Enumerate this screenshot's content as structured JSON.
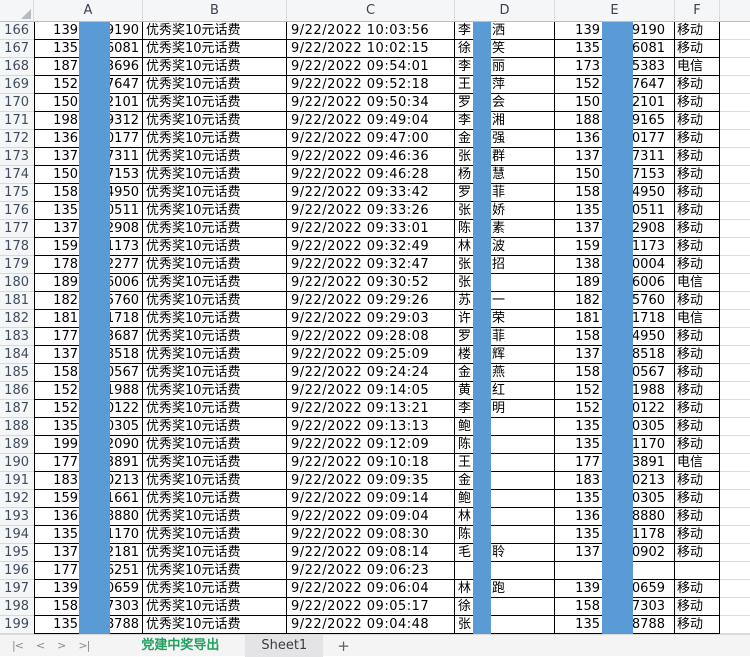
{
  "sheet": {
    "column_headers": [
      "A",
      "B",
      "C",
      "D",
      "E",
      "F"
    ],
    "prize_label": "优秀奖10元话费",
    "rows": [
      {
        "n": "166",
        "a1": "139",
        "a2": "9190",
        "time": "9/22/2022 10:03:56",
        "d1": "李",
        "d2": "洒",
        "e1": "139",
        "e2": "9190",
        "f": "移动"
      },
      {
        "n": "167",
        "a1": "135",
        "a2": "6081",
        "time": "9/22/2022 10:02:15",
        "d1": "徐",
        "d2": "笑",
        "e1": "135",
        "e2": "6081",
        "f": "移动"
      },
      {
        "n": "168",
        "a1": "187",
        "a2": "3696",
        "time": "9/22/2022 09:54:01",
        "d1": "李",
        "d2": "丽",
        "e1": "173",
        "e2": "5383",
        "f": "电信"
      },
      {
        "n": "169",
        "a1": "152",
        "a2": "7647",
        "time": "9/22/2022 09:52:18",
        "d1": "王",
        "d2": "萍",
        "e1": "152",
        "e2": "7647",
        "f": "移动"
      },
      {
        "n": "170",
        "a1": "150",
        "a2": "2101",
        "time": "9/22/2022 09:50:34",
        "d1": "罗",
        "d2": "会",
        "e1": "150",
        "e2": "2101",
        "f": "移动"
      },
      {
        "n": "171",
        "a1": "198",
        "a2": "9312",
        "time": "9/22/2022 09:49:04",
        "d1": "李",
        "d2": "湘",
        "e1": "188",
        "e2": "9165",
        "f": "移动"
      },
      {
        "n": "172",
        "a1": "136",
        "a2": "0177",
        "time": "9/22/2022 09:47:00",
        "d1": "金",
        "d2": "强",
        "e1": "136",
        "e2": "0177",
        "f": "移动"
      },
      {
        "n": "173",
        "a1": "137",
        "a2": "7311",
        "time": "9/22/2022 09:46:36",
        "d1": "张",
        "d2": "群",
        "e1": "137",
        "e2": "7311",
        "f": "移动"
      },
      {
        "n": "174",
        "a1": "150",
        "a2": "7153",
        "time": "9/22/2022 09:46:28",
        "d1": "杨",
        "d2": "慧",
        "e1": "150",
        "e2": "7153",
        "f": "移动"
      },
      {
        "n": "175",
        "a1": "158",
        "a2": "4950",
        "time": "9/22/2022 09:33:42",
        "d1": "罗",
        "d2": "菲",
        "e1": "158",
        "e2": "4950",
        "f": "移动"
      },
      {
        "n": "176",
        "a1": "135",
        "a2": "0511",
        "time": "9/22/2022 09:33:26",
        "d1": "张",
        "d2": "娇",
        "e1": "135",
        "e2": "0511",
        "f": "移动"
      },
      {
        "n": "177",
        "a1": "137",
        "a2": "2908",
        "time": "9/22/2022 09:33:01",
        "d1": "陈",
        "d2": "素",
        "e1": "137",
        "e2": "2908",
        "f": "移动"
      },
      {
        "n": "178",
        "a1": "159",
        "a2": "1173",
        "time": "9/22/2022 09:32:49",
        "d1": "林",
        "d2": "波",
        "e1": "159",
        "e2": "1173",
        "f": "移动"
      },
      {
        "n": "179",
        "a1": "178",
        "a2": "2277",
        "time": "9/22/2022 09:32:47",
        "d1": "张",
        "d2": "招",
        "e1": "138",
        "e2": "0004",
        "f": "移动"
      },
      {
        "n": "180",
        "a1": "189",
        "a2": "6006",
        "time": "9/22/2022 09:30:52",
        "d1": "张",
        "d2": "",
        "e1": "189",
        "e2": "6006",
        "f": "电信"
      },
      {
        "n": "181",
        "a1": "182",
        "a2": "5760",
        "time": "9/22/2022 09:29:26",
        "d1": "苏",
        "d2": "一",
        "e1": "182",
        "e2": "5760",
        "f": "移动"
      },
      {
        "n": "182",
        "a1": "181",
        "a2": "1718",
        "time": "9/22/2022 09:29:03",
        "d1": "许",
        "d2": "荣",
        "e1": "181",
        "e2": "1718",
        "f": "电信"
      },
      {
        "n": "183",
        "a1": "177",
        "a2": "3687",
        "time": "9/22/2022 09:28:08",
        "d1": "罗",
        "d2": "菲",
        "e1": "158",
        "e2": "4950",
        "f": "移动"
      },
      {
        "n": "184",
        "a1": "137",
        "a2": "8518",
        "time": "9/22/2022 09:25:09",
        "d1": "楼",
        "d2": "辉",
        "e1": "137",
        "e2": "8518",
        "f": "移动"
      },
      {
        "n": "185",
        "a1": "158",
        "a2": "0567",
        "time": "9/22/2022 09:24:24",
        "d1": "金",
        "d2": "燕",
        "e1": "158",
        "e2": "0567",
        "f": "移动"
      },
      {
        "n": "186",
        "a1": "152",
        "a2": "1988",
        "time": "9/22/2022 09:14:05",
        "d1": "黄",
        "d2": "红",
        "e1": "152",
        "e2": "1988",
        "f": "移动"
      },
      {
        "n": "187",
        "a1": "152",
        "a2": "0122",
        "time": "9/22/2022 09:13:21",
        "d1": "李",
        "d2": "明",
        "e1": "152",
        "e2": "0122",
        "f": "移动"
      },
      {
        "n": "188",
        "a1": "135",
        "a2": "0305",
        "time": "9/22/2022 09:13:13",
        "d1": "鲍",
        "d2": "",
        "e1": "135",
        "e2": "0305",
        "f": "移动"
      },
      {
        "n": "189",
        "a1": "199",
        "a2": "2090",
        "time": "9/22/2022 09:12:09",
        "d1": "陈",
        "d2": "",
        "e1": "135",
        "e2": "1170",
        "f": "移动"
      },
      {
        "n": "190",
        "a1": "177",
        "a2": "3891",
        "time": "9/22/2022 09:10:18",
        "d1": "王",
        "d2": "",
        "e1": "177",
        "e2": "3891",
        "f": "电信"
      },
      {
        "n": "191",
        "a1": "183",
        "a2": "0213",
        "time": "9/22/2022 09:09:35",
        "d1": "金",
        "d2": "",
        "e1": "183",
        "e2": "0213",
        "f": "移动"
      },
      {
        "n": "192",
        "a1": "159",
        "a2": "1661",
        "time": "9/22/2022 09:09:14",
        "d1": "鲍",
        "d2": "",
        "e1": "135",
        "e2": "0305",
        "f": "移动"
      },
      {
        "n": "193",
        "a1": "136",
        "a2": "8880",
        "time": "9/22/2022 09:09:04",
        "d1": "林",
        "d2": "",
        "e1": "136",
        "e2": "8880",
        "f": "移动"
      },
      {
        "n": "194",
        "a1": "135",
        "a2": "1170",
        "time": "9/22/2022 09:08:30",
        "d1": "陈",
        "d2": "",
        "e1": "135",
        "e2": "1178",
        "f": "移动"
      },
      {
        "n": "195",
        "a1": "137",
        "a2": "2181",
        "time": "9/22/2022 09:08:14",
        "d1": "毛",
        "d2": "聆",
        "e1": "137",
        "e2": "0902",
        "f": "移动"
      },
      {
        "n": "196",
        "a1": "177",
        "a2": "6251",
        "time": "9/22/2022 09:06:23",
        "d1": "",
        "d2": "",
        "e1": "",
        "e2": "",
        "f": ""
      },
      {
        "n": "197",
        "a1": "139",
        "a2": "0659",
        "time": "9/22/2022 09:06:04",
        "d1": "林",
        "d2": "跑",
        "e1": "139",
        "e2": "0659",
        "f": "移动"
      },
      {
        "n": "198",
        "a1": "158",
        "a2": "7303",
        "time": "9/22/2022 09:05:17",
        "d1": "徐",
        "d2": "",
        "e1": "158",
        "e2": "7303",
        "f": "移动"
      },
      {
        "n": "199",
        "a1": "135",
        "a2": "8788",
        "time": "9/22/2022 09:04:48",
        "d1": "张",
        "d2": "",
        "e1": "135",
        "e2": "8788",
        "f": "移动"
      }
    ]
  },
  "tabbar": {
    "nav": {
      "first": "|<",
      "prev": "<",
      "next": ">",
      "last": ">|"
    },
    "active_tab": "党建中奖导出",
    "inactive_tab": "Sheet1",
    "add_sheet": "+"
  },
  "colors": {
    "redaction_bar": "#5b9bd5",
    "active_tab_text": "#21a15f",
    "cell_border": "#000000"
  }
}
